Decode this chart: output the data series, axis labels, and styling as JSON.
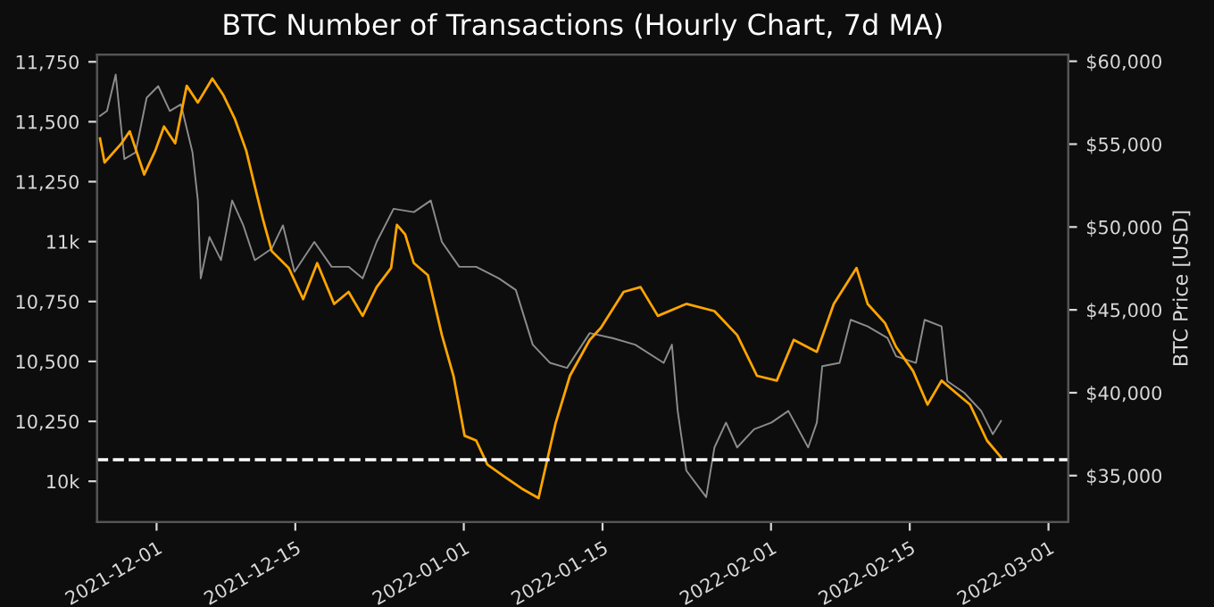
{
  "chart_data": {
    "type": "line",
    "title": "BTC Number of Transactions (Hourly Chart, 7d MA)",
    "y2label": "BTC Price [USD]",
    "xlim": [
      "2021-11-25",
      "2022-03-03"
    ],
    "xticks": [
      "2021-12-01",
      "2021-12-15",
      "2022-01-01",
      "2022-01-15",
      "2022-02-01",
      "2022-02-15",
      "2022-03-01"
    ],
    "ylim": [
      9830,
      11780
    ],
    "yticks": [
      {
        "value": 10000,
        "label": "10k"
      },
      {
        "value": 10250,
        "label": "10,250"
      },
      {
        "value": 10500,
        "label": "10,500"
      },
      {
        "value": 10750,
        "label": "10,750"
      },
      {
        "value": 11000,
        "label": "11k"
      },
      {
        "value": 11250,
        "label": "11,250"
      },
      {
        "value": 11500,
        "label": "11,500"
      },
      {
        "value": 11750,
        "label": "11,750"
      }
    ],
    "y2lim": [
      32200,
      60400
    ],
    "y2ticks": [
      {
        "value": 35000,
        "label": "$35,000"
      },
      {
        "value": 40000,
        "label": "$40,000"
      },
      {
        "value": 45000,
        "label": "$45,000"
      },
      {
        "value": 50000,
        "label": "$50,000"
      },
      {
        "value": 55000,
        "label": "$55,000"
      },
      {
        "value": 60000,
        "label": "$60,000"
      }
    ],
    "grid": false,
    "ref_lines": [
      {
        "axis": "y",
        "value": 10090,
        "color": "#ffffff",
        "line_style": "dashed"
      }
    ],
    "series": [
      {
        "axis": "y2",
        "color": "#8c8c8c",
        "x": [
          "2021-11-25T07:00",
          "2021-11-26T00:00",
          "2021-11-26T21:00",
          "2021-11-27T18:00",
          "2021-11-28T21:00",
          "2021-11-30T00:00",
          "2021-12-01T04:00",
          "2021-12-02T08:00",
          "2021-12-03T11:00",
          "2021-12-04T15:00",
          "2021-12-05T04:00",
          "2021-12-05T11:00",
          "2021-12-06T08:00",
          "2021-12-07T12:00",
          "2021-12-08T15:00",
          "2021-12-09T18:00",
          "2021-12-10T22:00",
          "2021-12-12T15:00",
          "2021-12-13T18:00",
          "2021-12-14T22:00",
          "2021-12-16T22:00",
          "2021-12-18T16:00",
          "2021-12-20T09:00",
          "2021-12-21T19:00",
          "2021-12-23T05:00",
          "2021-12-24T22:00",
          "2021-12-26T23:00",
          "2021-12-28T16:00",
          "2021-12-29T19:00",
          "2021-12-31T13:00",
          "2022-01-02T06:00",
          "2022-01-04T13:00",
          "2022-01-06T06:00",
          "2022-01-07T23:00",
          "2022-01-09T17:00",
          "2022-01-11T10:00",
          "2022-01-13T17:00",
          "2022-01-16T00:00",
          "2022-01-18T07:00",
          "2022-01-21T04:00",
          "2022-01-22T00:00",
          "2022-01-22T14:00",
          "2022-01-23T11:00",
          "2022-01-25T11:00",
          "2022-01-26T07:00",
          "2022-01-27T11:00",
          "2022-01-28T14:00",
          "2022-01-30T07:00",
          "2022-02-01T01:00",
          "2022-02-02T18:00",
          "2022-02-04T18:00",
          "2022-02-05T15:00",
          "2022-02-06T04:00",
          "2022-02-07T22:00",
          "2022-02-09T01:00",
          "2022-02-10T18:00",
          "2022-02-12T18:00",
          "2022-02-13T15:00",
          "2022-02-15T15:00",
          "2022-02-16T12:00",
          "2022-02-18T05:00",
          "2022-02-18T19:00",
          "2022-02-20T12:00",
          "2022-02-22T05:00",
          "2022-02-23T09:00",
          "2022-02-24T05:00"
        ],
        "values": [
          56700,
          57000,
          59200,
          54100,
          54500,
          57800,
          58500,
          57000,
          57400,
          54500,
          51600,
          46900,
          49400,
          48000,
          51600,
          50100,
          48000,
          48700,
          50100,
          47300,
          49100,
          47600,
          47600,
          46900,
          49100,
          51100,
          50900,
          51600,
          49100,
          47600,
          47600,
          46900,
          46200,
          42900,
          41800,
          41500,
          43600,
          43300,
          42900,
          41800,
          42900,
          38900,
          35300,
          33700,
          36700,
          38200,
          36700,
          37800,
          38200,
          38900,
          36700,
          38200,
          41600,
          41800,
          44400,
          44000,
          43300,
          42200,
          41800,
          44400,
          44000,
          40700,
          40000,
          38900,
          37500,
          38300
        ]
      },
      {
        "axis": "y",
        "color": "#ffa500",
        "x": [
          "2021-11-25T07:00",
          "2021-11-25T18:00",
          "2021-11-27T11:00",
          "2021-11-28T07:00",
          "2021-11-29T18:00",
          "2021-11-30T21:00",
          "2021-12-01T18:00",
          "2021-12-02T21:00",
          "2021-12-04T01:00",
          "2021-12-05T04:00",
          "2021-12-06T15:00",
          "2021-12-07T18:00",
          "2021-12-08T22:00",
          "2021-12-10T01:00",
          "2021-12-10T22:00",
          "2021-12-11T18:00",
          "2021-12-12T15:00",
          "2021-12-14T08:00",
          "2021-12-15T19:00",
          "2021-12-17T05:00",
          "2021-12-18T22:00",
          "2021-12-20T09:00",
          "2021-12-21T19:00",
          "2021-12-23T05:00",
          "2021-12-24T16:00",
          "2021-12-25T06:00",
          "2021-12-26T02:00",
          "2021-12-26T23:00",
          "2021-12-28T09:00",
          "2021-12-29T19:00",
          "2021-12-30T23:00",
          "2022-01-01T02:00",
          "2022-01-02T06:00",
          "2022-01-03T09:00",
          "2022-01-05T02:00",
          "2022-01-06T20:00",
          "2022-01-08T13:00",
          "2022-01-10T06:00",
          "2022-01-11T17:00",
          "2022-01-13T17:00",
          "2022-01-14T20:00",
          "2022-01-17T03:00",
          "2022-01-18T20:00",
          "2022-01-20T14:00",
          "2022-01-23T11:00",
          "2022-01-26T07:00",
          "2022-01-28T14:00",
          "2022-01-30T14:00",
          "2022-02-01T14:00",
          "2022-02-03T07:00",
          "2022-02-05T15:00",
          "2022-02-07T08:00",
          "2022-02-09T15:00",
          "2022-02-10T18:00",
          "2022-02-12T12:00",
          "2022-02-13T15:00",
          "2022-02-15T08:00",
          "2022-02-16T19:00",
          "2022-02-18T05:00",
          "2022-02-19T15:00",
          "2022-02-21T02:00",
          "2022-02-22T19:00",
          "2022-02-24T05:00"
        ],
        "values": [
          11430,
          11330,
          11410,
          11460,
          11280,
          11380,
          11480,
          11410,
          11650,
          11580,
          11680,
          11610,
          11510,
          11380,
          11230,
          11090,
          10960,
          10890,
          10760,
          10910,
          10740,
          10790,
          10690,
          10810,
          10890,
          11070,
          11030,
          10910,
          10860,
          10610,
          10440,
          10190,
          10170,
          10070,
          10020,
          9970,
          9930,
          10240,
          10440,
          10590,
          10640,
          10790,
          10810,
          10690,
          10740,
          10710,
          10610,
          10440,
          10420,
          10590,
          10540,
          10740,
          10890,
          10740,
          10660,
          10560,
          10460,
          10320,
          10420,
          10370,
          10320,
          10170,
          10100
        ]
      }
    ]
  }
}
